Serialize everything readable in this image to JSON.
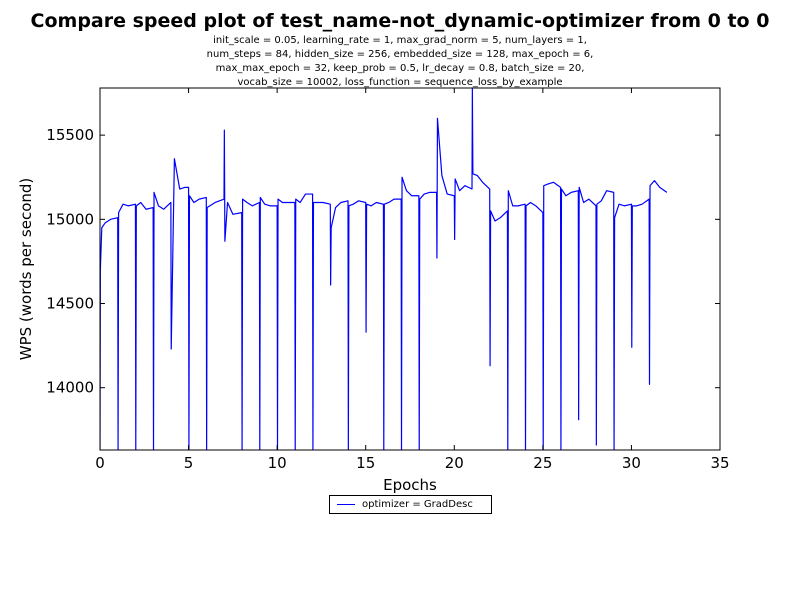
{
  "chart_data": {
    "type": "line",
    "title": "Compare speed plot of test_name-not_dynamic-optimizer from 0 to 0",
    "subtitle_lines": [
      "init_scale = 0.05, learning_rate = 1, max_grad_norm = 5, num_layers = 1,",
      "num_steps = 84, hidden_size = 256, embedded_size = 128, max_epoch = 6,",
      "max_max_epoch = 32, keep_prob = 0.5, lr_decay = 0.8, batch_size = 20,",
      "vocab_size = 10002, loss_function = sequence_loss_by_example"
    ],
    "xlabel": "Epochs",
    "ylabel": "WPS (words per second)",
    "xlim": [
      0,
      35
    ],
    "ylim": [
      13630,
      15780
    ],
    "xticks": [
      0,
      5,
      10,
      15,
      20,
      25,
      30,
      35
    ],
    "yticks": [
      14000,
      14500,
      15000,
      15500
    ],
    "grid": false,
    "legend_position": "below-center",
    "series": [
      {
        "name": "optimizer = GradDesc",
        "color": "#0000ff",
        "x": [
          0,
          0.02,
          0.1,
          0.3,
          0.6,
          1.0,
          1.02,
          1.05,
          1.3,
          1.6,
          2.0,
          2.02,
          2.05,
          2.3,
          2.6,
          3.0,
          3.02,
          3.05,
          3.3,
          3.6,
          4.0,
          4.02,
          4.2,
          4.5,
          4.8,
          5.0,
          5.02,
          5.05,
          5.3,
          5.6,
          6.0,
          6.02,
          6.05,
          6.5,
          7.0,
          7.02,
          7.05,
          7.2,
          7.5,
          8.0,
          8.02,
          8.05,
          8.3,
          8.6,
          9.0,
          9.02,
          9.05,
          9.3,
          9.6,
          10.0,
          10.02,
          10.05,
          10.3,
          10.6,
          11.0,
          11.02,
          11.05,
          11.3,
          11.6,
          12.0,
          12.02,
          12.05,
          12.3,
          12.6,
          13.0,
          13.02,
          13.05,
          13.3,
          13.6,
          14.0,
          14.02,
          14.05,
          14.3,
          14.6,
          15.0,
          15.02,
          15.05,
          15.3,
          15.6,
          16.0,
          16.02,
          16.05,
          16.3,
          16.6,
          17.0,
          17.02,
          17.05,
          17.3,
          17.6,
          18.0,
          18.02,
          18.05,
          18.3,
          18.6,
          19.0,
          19.02,
          19.05,
          19.3,
          19.6,
          20.0,
          20.02,
          20.05,
          20.3,
          20.6,
          21.0,
          21.02,
          21.05,
          21.3,
          21.6,
          22.0,
          22.02,
          22.05,
          22.3,
          22.6,
          23.0,
          23.02,
          23.05,
          23.3,
          23.6,
          24.0,
          24.02,
          24.05,
          24.3,
          24.6,
          25.0,
          25.02,
          25.05,
          25.3,
          25.6,
          26.0,
          26.02,
          26.05,
          26.3,
          26.6,
          27.0,
          27.02,
          27.05,
          27.3,
          27.6,
          28.0,
          28.02,
          28.05,
          28.3,
          28.6,
          29.0,
          29.02,
          29.05,
          29.3,
          29.6,
          30.0,
          30.02,
          30.05,
          30.3,
          30.6,
          31.0,
          31.02,
          31.05,
          31.3,
          31.6,
          32.0
        ],
        "y": [
          13630,
          14700,
          14950,
          14980,
          15000,
          15010,
          13630,
          15040,
          15090,
          15080,
          15090,
          13630,
          15080,
          15100,
          15060,
          15070,
          13630,
          15160,
          15080,
          15060,
          15100,
          14230,
          15360,
          15180,
          15190,
          15190,
          13630,
          15140,
          15100,
          15120,
          15130,
          13630,
          15070,
          15100,
          15120,
          15530,
          14870,
          15100,
          15030,
          15040,
          13630,
          15120,
          15100,
          15080,
          15100,
          13630,
          15130,
          15090,
          15080,
          15080,
          13630,
          15120,
          15100,
          15100,
          15100,
          13630,
          15120,
          15100,
          15150,
          15150,
          13630,
          15100,
          15100,
          15100,
          15090,
          14610,
          14950,
          15070,
          15100,
          15110,
          13630,
          15080,
          15090,
          15110,
          15100,
          14330,
          15090,
          15080,
          15100,
          15090,
          13630,
          15090,
          15100,
          15120,
          15120,
          13630,
          15250,
          15170,
          15140,
          15140,
          13630,
          15120,
          15150,
          15160,
          15160,
          14770,
          15600,
          15260,
          15150,
          15140,
          14880,
          15240,
          15170,
          15200,
          15180,
          15780,
          15270,
          15260,
          15220,
          15180,
          14130,
          15050,
          14990,
          15010,
          15050,
          13630,
          15170,
          15080,
          15080,
          15090,
          13630,
          15080,
          15100,
          15080,
          15040,
          13630,
          15200,
          15210,
          15220,
          15190,
          13630,
          15180,
          15140,
          15160,
          15170,
          13810,
          15190,
          15100,
          15120,
          15080,
          13660,
          15090,
          15110,
          15170,
          15160,
          13630,
          15010,
          15090,
          15080,
          15090,
          14240,
          15080,
          15080,
          15090,
          15120,
          14020,
          15200,
          15230,
          15190,
          15160
        ]
      }
    ]
  }
}
